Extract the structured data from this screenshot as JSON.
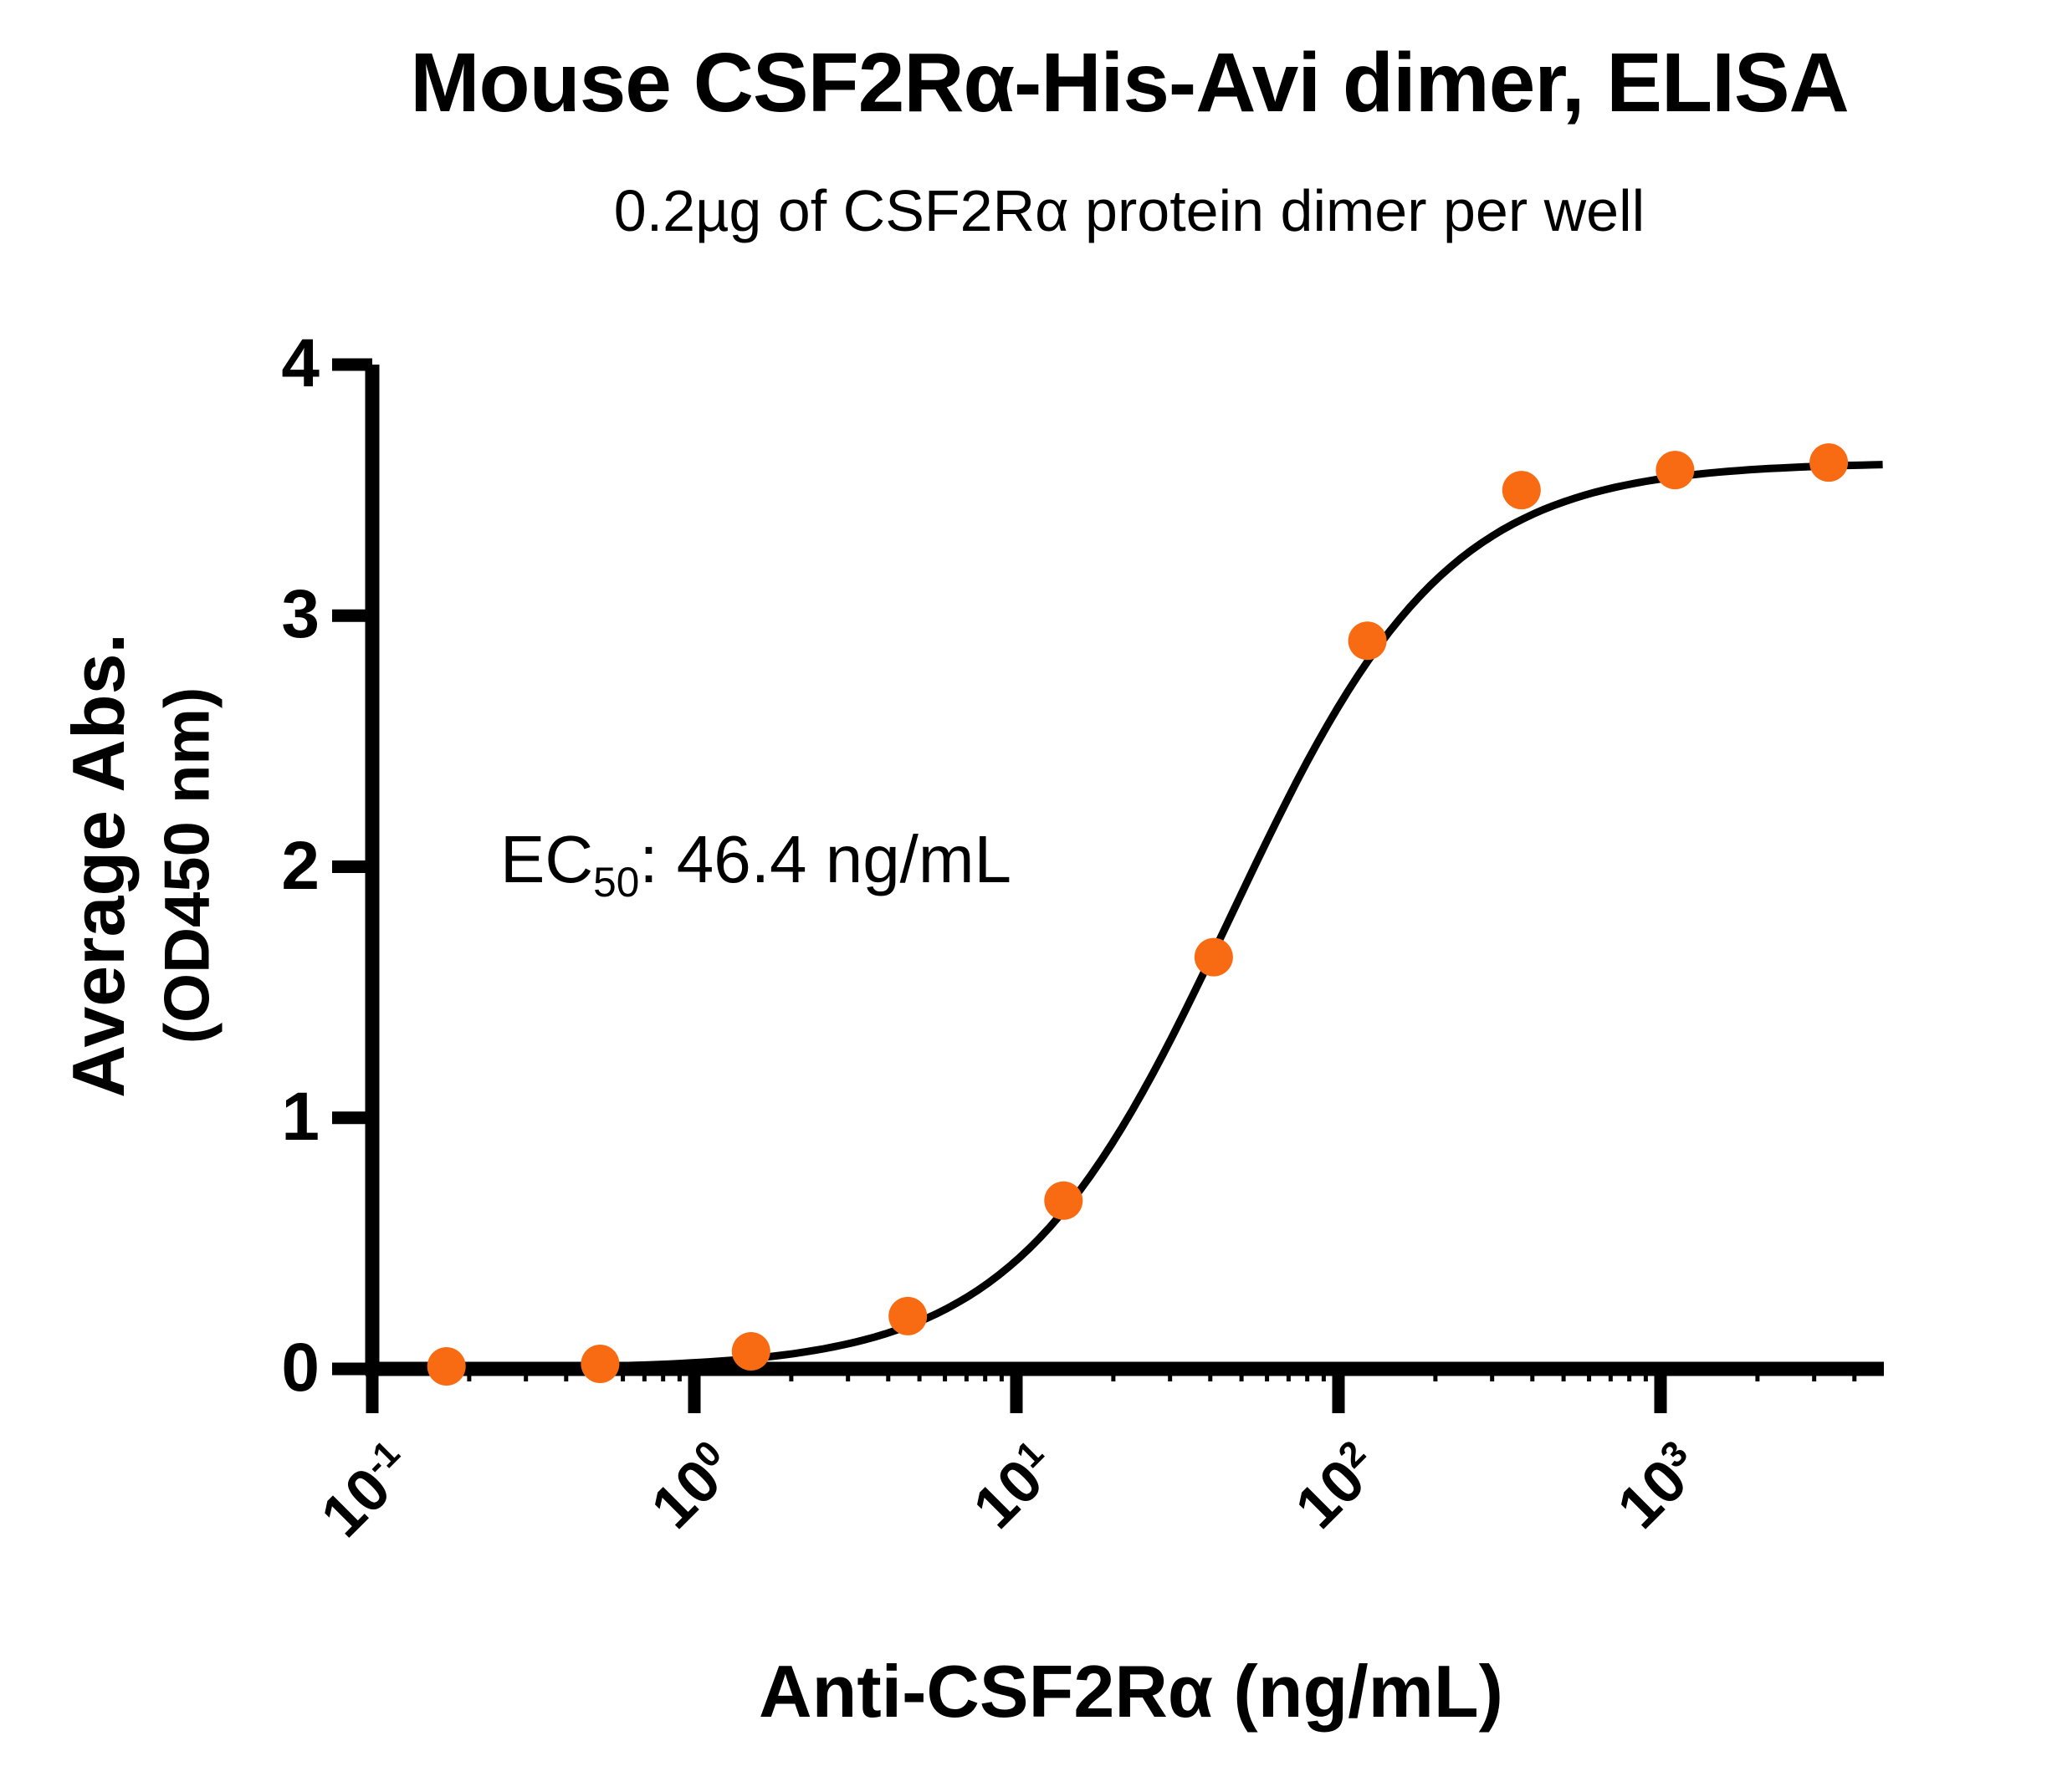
{
  "title": "Mouse CSF2Rα-His-Avi dimer, ELISA",
  "subtitle": "0.2µg of CSF2Rα protein dimer per well",
  "annotation": {
    "prefix": "EC",
    "subscript": "50",
    "rest": ": 46.4 ng/mL"
  },
  "chart_data": {
    "type": "scatter",
    "title": "Mouse CSF2Rα-His-Avi dimer, ELISA",
    "subtitle": "0.2µg of CSF2Rα protein dimer per well",
    "x_label": "Anti-CSF2Rα (ng/mL)",
    "y_label_line1": "Average Abs.",
    "y_label_line2": "(OD450 nm)",
    "x_scale": "log10",
    "x_range_log10": [
      -1,
      3.69
    ],
    "y_range": [
      0,
      4
    ],
    "grid": false,
    "legend": "none",
    "x_tick_values": [
      0.1,
      1,
      10,
      100,
      1000
    ],
    "x_tick_labels": [
      {
        "base": "10",
        "exp": "-1"
      },
      {
        "base": "10",
        "exp": "0"
      },
      {
        "base": "10",
        "exp": "1"
      },
      {
        "base": "10",
        "exp": "2"
      },
      {
        "base": "10",
        "exp": "3"
      }
    ],
    "y_ticks": [
      0,
      1,
      2,
      3,
      4
    ],
    "points": [
      {
        "x": 0.17,
        "y": 0.01
      },
      {
        "x": 0.51,
        "y": 0.02
      },
      {
        "x": 1.5,
        "y": 0.07
      },
      {
        "x": 4.6,
        "y": 0.21
      },
      {
        "x": 14,
        "y": 0.67
      },
      {
        "x": 41,
        "y": 1.64
      },
      {
        "x": 123,
        "y": 2.9
      },
      {
        "x": 370,
        "y": 3.5
      },
      {
        "x": 1110,
        "y": 3.58
      },
      {
        "x": 3330,
        "y": 3.61
      }
    ],
    "fit": {
      "model": "4PL",
      "bottom": 0.0,
      "top": 3.61,
      "ec50": 46.4,
      "hill": 1.3
    },
    "ec50_ng_ml": 46.4,
    "marker_color": "#F96B13",
    "curve_color": "#000000",
    "axis_color": "#000000"
  }
}
